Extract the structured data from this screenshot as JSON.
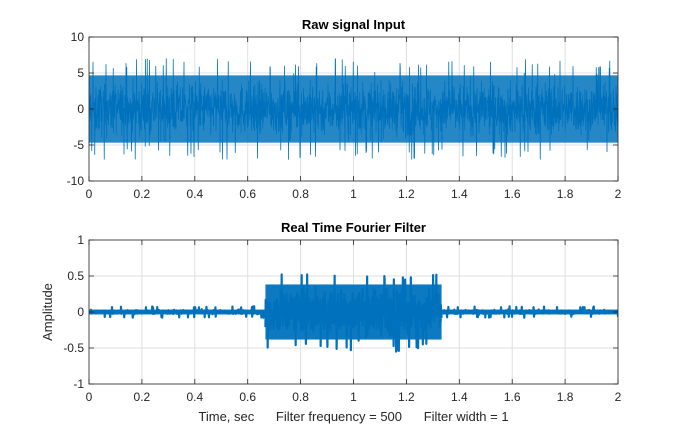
{
  "chart_data": [
    {
      "type": "line",
      "title": "Raw signal Input",
      "xlabel": "",
      "ylabel": "",
      "xlim": [
        0,
        2
      ],
      "ylim": [
        -10,
        10
      ],
      "xticks": [
        0,
        0.2,
        0.4,
        0.6,
        0.8,
        1,
        1.2,
        1.4,
        1.6,
        1.8,
        2
      ],
      "xtick_labels": [
        "0",
        "0.2",
        "0.4",
        "0.6",
        "0.8",
        "1",
        "1.2",
        "1.4",
        "1.6",
        "1.8",
        "2"
      ],
      "yticks": [
        -10,
        -5,
        0,
        5,
        10
      ],
      "ytick_labels": [
        "-10",
        "-5",
        "0",
        "5",
        "10"
      ],
      "grid": true,
      "series": [
        {
          "color": "#0072BD",
          "description_of_shape": "dense white noise",
          "segments": [
            {
              "x_start": 0,
              "x_end": 2,
              "envelope_min": -7,
              "envelope_max": 7,
              "typical_min": -5.5,
              "typical_max": 5.5
            }
          ]
        }
      ]
    },
    {
      "type": "line",
      "title": "Real Time Fourier Filter",
      "xlabel": "Time, sec      Filter frequency = 500      Filter width = 1",
      "ylabel": "Amplitude",
      "xlim": [
        0,
        2
      ],
      "ylim": [
        -1,
        1
      ],
      "xticks": [
        0,
        0.2,
        0.4,
        0.6,
        0.8,
        1,
        1.2,
        1.4,
        1.6,
        1.8,
        2
      ],
      "xtick_labels": [
        "0",
        "0.2",
        "0.4",
        "0.6",
        "0.8",
        "1",
        "1.2",
        "1.4",
        "1.6",
        "1.8",
        "2"
      ],
      "yticks": [
        -1,
        -0.5,
        0,
        0.5,
        1
      ],
      "ytick_labels": [
        "-1",
        "-0.5",
        "0",
        "0.5",
        "1"
      ],
      "grid": true,
      "series": [
        {
          "color": "#0072BD",
          "segments": [
            {
              "x_start": 0,
              "x_end": 0.667,
              "envelope_min": -0.08,
              "envelope_max": 0.08,
              "typical_min": -0.04,
              "typical_max": 0.04
            },
            {
              "x_start": 0.667,
              "x_end": 1.333,
              "envelope_min": -0.55,
              "envelope_max": 0.55,
              "typical_min": -0.45,
              "typical_max": 0.45
            },
            {
              "x_start": 1.333,
              "x_end": 2,
              "envelope_min": -0.08,
              "envelope_max": 0.08,
              "typical_min": -0.04,
              "typical_max": 0.04
            }
          ]
        }
      ]
    }
  ]
}
